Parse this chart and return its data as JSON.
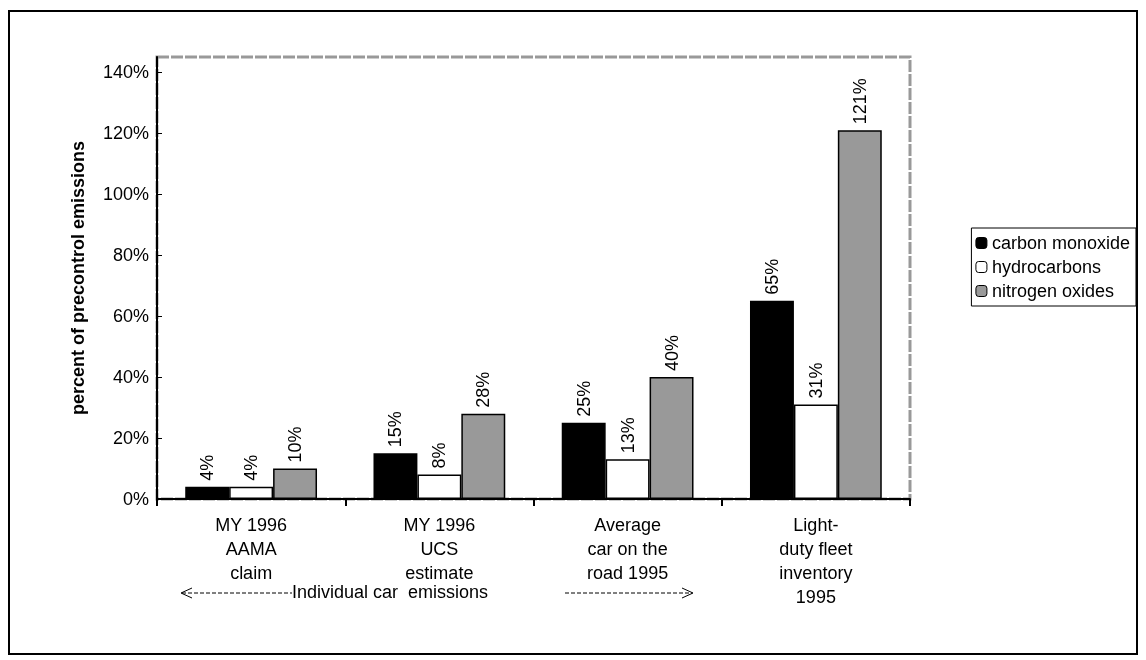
{
  "chart_data": {
    "type": "bar",
    "ylabel": "percent of precontrol emissions",
    "categories": [
      "MY 1996\nAAMA\nclaim",
      "MY 1996\nUCS\nestimate",
      "Average\ncar on the\nroad 1995",
      "Light-\nduty fleet\ninventory\n1995"
    ],
    "series": [
      {
        "name": "carbon monoxide",
        "color": "#000000",
        "values": [
          4,
          15,
          25,
          65
        ],
        "value_labels": [
          "4%",
          "15%",
          "25%",
          "65%"
        ]
      },
      {
        "name": "hydrocarbons",
        "color": "#ffffff",
        "values": [
          4,
          8,
          13,
          31
        ],
        "value_labels": [
          "4%",
          "8%",
          "13%",
          "31%"
        ]
      },
      {
        "name": "nitrogen oxides",
        "color": "#999999",
        "values": [
          10,
          28,
          40,
          121
        ],
        "value_labels": [
          "10%",
          "28%",
          "40%",
          "121%"
        ]
      }
    ],
    "ylim": [
      0,
      145
    ],
    "yticks": [
      {
        "value": 0,
        "label": "0%"
      },
      {
        "value": 20,
        "label": "20%"
      },
      {
        "value": 40,
        "label": "40%"
      },
      {
        "value": 60,
        "label": "60%"
      },
      {
        "value": 80,
        "label": "80%"
      },
      {
        "value": 100,
        "label": "100%"
      },
      {
        "value": 120,
        "label": "120%"
      },
      {
        "value": 140,
        "label": "140%"
      }
    ],
    "grid": false,
    "legend": "right",
    "annotations": [
      "Individual car  emissions"
    ]
  }
}
